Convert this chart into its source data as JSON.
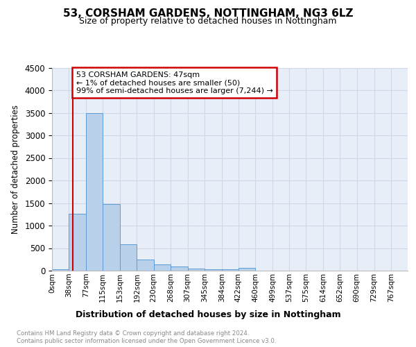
{
  "title": "53, CORSHAM GARDENS, NOTTINGHAM, NG3 6LZ",
  "subtitle": "Size of property relative to detached houses in Nottingham",
  "xlabel": "Distribution of detached houses by size in Nottingham",
  "ylabel": "Number of detached properties",
  "footer_line1": "Contains HM Land Registry data © Crown copyright and database right 2024.",
  "footer_line2": "Contains public sector information licensed under the Open Government Licence v3.0.",
  "bar_labels": [
    "0sqm",
    "38sqm",
    "77sqm",
    "115sqm",
    "153sqm",
    "192sqm",
    "230sqm",
    "268sqm",
    "307sqm",
    "345sqm",
    "384sqm",
    "422sqm",
    "460sqm",
    "499sqm",
    "537sqm",
    "575sqm",
    "614sqm",
    "652sqm",
    "690sqm",
    "729sqm",
    "767sqm"
  ],
  "bar_values": [
    30,
    1260,
    3500,
    1480,
    580,
    250,
    140,
    90,
    50,
    30,
    30,
    60,
    0,
    0,
    0,
    0,
    0,
    0,
    0,
    0,
    0
  ],
  "bar_color": "#b8d0ea",
  "bar_edge_color": "#5b9bd5",
  "ylim": [
    0,
    4500
  ],
  "yticks": [
    0,
    500,
    1000,
    1500,
    2000,
    2500,
    3000,
    3500,
    4000,
    4500
  ],
  "property_line_x": 47,
  "annotation_text_line1": "53 CORSHAM GARDENS: 47sqm",
  "annotation_text_line2": "← 1% of detached houses are smaller (50)",
  "annotation_text_line3": "99% of semi-detached houses are larger (7,244) →",
  "annotation_box_color": "#ffffff",
  "annotation_border_color": "#cc0000",
  "red_line_color": "#cc0000",
  "grid_color": "#d0d8e8",
  "background_color": "#e8eef8",
  "bin_edges": [
    0,
    38,
    77,
    115,
    153,
    192,
    230,
    268,
    307,
    345,
    384,
    422,
    460,
    499,
    537,
    575,
    614,
    652,
    690,
    729,
    767,
    805
  ]
}
